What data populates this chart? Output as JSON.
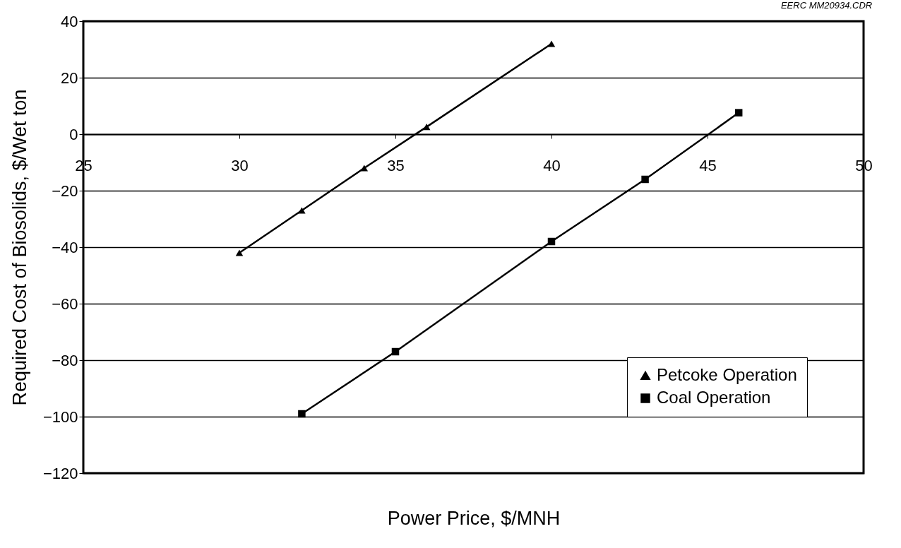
{
  "chart_data": {
    "type": "line",
    "xlabel": "Power Price, $/MNH",
    "ylabel": "Required Cost of Biosolids, $/Wet ton",
    "annotations": [
      "EERC MM20934.CDR"
    ],
    "series": [
      {
        "name": "Petcoke Operation",
        "color": "#000000",
        "marker": "triangle",
        "x": [
          30,
          32,
          34,
          36,
          40
        ],
        "values": [
          -42,
          -27,
          -12,
          2.6,
          32
        ]
      },
      {
        "name": "Coal Operation",
        "color": "#000000",
        "marker": "square",
        "x": [
          32,
          35,
          40,
          43,
          46
        ],
        "values": [
          -99,
          -77,
          -38,
          -16,
          7.6
        ]
      }
    ],
    "xlim": [
      25,
      50
    ],
    "xticks": [
      25,
      30,
      35,
      40,
      45,
      50
    ],
    "ylim": [
      -120,
      40
    ],
    "yticks": [
      {
        "value": -120,
        "label": "−120"
      },
      {
        "value": -100,
        "label": "−100"
      },
      {
        "value": -80,
        "label": "−80"
      },
      {
        "value": -60,
        "label": "−60"
      },
      {
        "value": -40,
        "label": "−40"
      },
      {
        "value": -20,
        "label": "−20"
      },
      0,
      20,
      40
    ],
    "grid": "y",
    "legend": "bottom right",
    "line_style": "solid"
  }
}
